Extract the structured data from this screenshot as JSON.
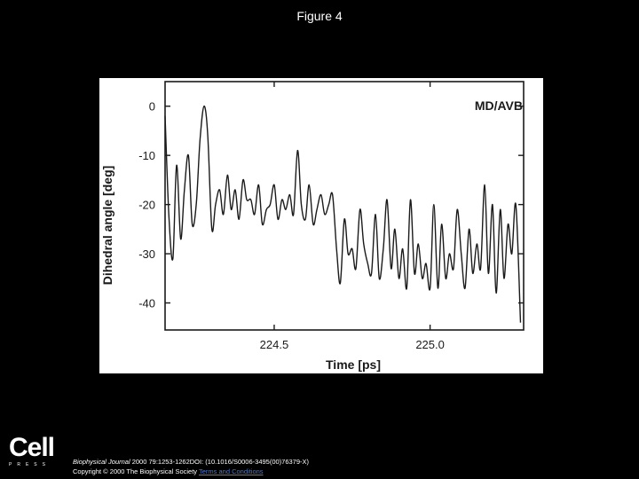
{
  "slide": {
    "title": "Figure 4"
  },
  "chart_data": {
    "type": "line",
    "title": "",
    "annotation": "MD/AVB",
    "xlabel": "Time [ps]",
    "ylabel": "Dihedral angle [deg]",
    "xlim": [
      224.15,
      225.3
    ],
    "ylim": [
      -45.5,
      5
    ],
    "xticks": [
      224.5,
      225.0
    ],
    "xtick_labels": [
      "224.5",
      "225.0"
    ],
    "yticks": [
      0,
      -10,
      -20,
      -30,
      -40
    ],
    "ytick_labels": [
      "0",
      "-10",
      "-20",
      "-30",
      "-40"
    ],
    "grid": false,
    "line_color": "#1a1a1a",
    "series": [
      {
        "x": [
          224.15,
          224.162,
          224.175,
          224.187,
          224.2,
          224.212,
          224.225,
          224.237,
          224.25,
          224.262,
          224.275,
          224.287,
          224.3,
          224.312,
          224.325,
          224.337,
          224.35,
          224.362,
          224.375,
          224.387,
          224.4,
          224.412,
          224.425,
          224.437,
          224.45,
          224.462,
          224.475,
          224.487,
          224.5,
          224.512,
          224.525,
          224.537,
          224.55,
          224.562,
          224.575,
          224.587,
          224.6,
          224.612,
          224.625,
          224.637,
          224.65,
          224.662,
          224.675,
          224.687,
          224.7,
          224.712,
          224.725,
          224.737,
          224.75,
          224.762,
          224.775,
          224.787,
          224.8,
          224.812,
          224.825,
          224.837,
          224.85,
          224.862,
          224.875,
          224.887,
          224.9,
          224.912,
          224.925,
          224.937,
          224.95,
          224.962,
          224.975,
          224.987,
          225.0,
          225.012,
          225.025,
          225.037,
          225.05,
          225.062,
          225.075,
          225.087,
          225.1,
          225.112,
          225.125,
          225.137,
          225.15,
          225.162,
          225.175,
          225.187,
          225.2,
          225.212,
          225.225,
          225.237,
          225.25,
          225.262,
          225.275,
          225.29
        ],
        "y": [
          -2,
          -22,
          -31,
          -12,
          -27,
          -17,
          -10,
          -24,
          -20,
          -7,
          0,
          -6,
          -25,
          -20,
          -17,
          -22,
          -14,
          -21,
          -17,
          -23,
          -15,
          -19,
          -19,
          -22,
          -16,
          -24,
          -21,
          -20,
          -16,
          -23,
          -19,
          -21,
          -18,
          -22,
          -9,
          -20,
          -23,
          -16,
          -24,
          -21,
          -18,
          -22,
          -20,
          -18,
          -29,
          -36,
          -23,
          -30,
          -29,
          -33,
          -21,
          -28,
          -32,
          -34,
          -22,
          -35,
          -29,
          -19,
          -33,
          -25,
          -35,
          -29,
          -37,
          -19,
          -34,
          -28,
          -35,
          -32,
          -37,
          -20,
          -37,
          -24,
          -35,
          -30,
          -33,
          -21,
          -30,
          -37,
          -25,
          -34,
          -28,
          -33,
          -16,
          -34,
          -20,
          -38,
          -21,
          -35,
          -24,
          -30,
          -20,
          -44
        ]
      }
    ]
  },
  "citation": {
    "journal": "Biophysical Journal",
    "details": " 2000 79:1253-1262DOI: (10.1016/S0006-3495(00)76379-X)",
    "copyright": "Copyright © 2000 The Biophysical Society ",
    "terms": "Terms and Conditions"
  },
  "logo": {
    "word": "Cell",
    "press": "PRESS"
  }
}
